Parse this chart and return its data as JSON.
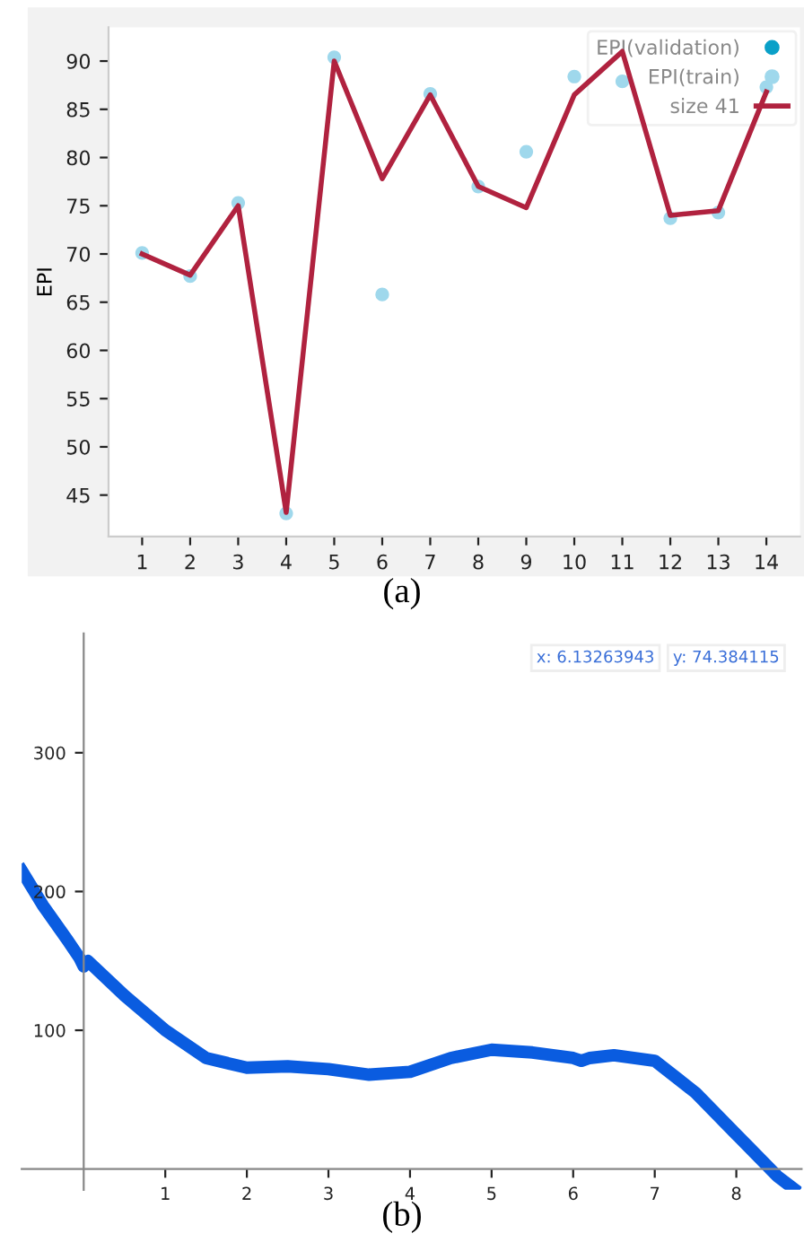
{
  "chart_data": [
    {
      "type": "line",
      "ylabel": "EPI",
      "x": [
        1,
        2,
        3,
        4,
        5,
        6,
        7,
        8,
        9,
        10,
        11,
        12,
        13,
        14
      ],
      "xlim": [
        0.3,
        14.7
      ],
      "xticks": [
        1,
        2,
        3,
        4,
        5,
        6,
        7,
        8,
        9,
        10,
        11,
        12,
        13,
        14
      ],
      "ylim": [
        40.7,
        93.5
      ],
      "yticks": [
        45,
        50,
        55,
        60,
        65,
        70,
        75,
        80,
        85,
        90
      ],
      "grid": false,
      "legend": "top right",
      "series": [
        {
          "name": "EPI(validation)",
          "type": "scatter",
          "color": "#0aa0c8",
          "values": [
            null,
            null,
            null,
            null,
            null,
            null,
            null,
            null,
            null,
            null,
            null,
            null,
            null,
            null
          ]
        },
        {
          "name": "EPI(train)",
          "type": "scatter",
          "color": "#9fd8ec",
          "values": [
            70.1,
            67.7,
            75.3,
            43.1,
            90.4,
            65.8,
            86.6,
            77,
            80.6,
            88.4,
            87.9,
            73.7,
            74.3,
            87.3
          ]
        },
        {
          "name": "size 41",
          "type": "line",
          "color": "#b0223f",
          "values": [
            70,
            67.8,
            75,
            43.2,
            90,
            77.8,
            86.5,
            77,
            74.8,
            86.5,
            91,
            74,
            74.5,
            86.8
          ]
        }
      ],
      "annotations": [
        "(a)"
      ]
    },
    {
      "type": "line",
      "xlim": [
        -0.76,
        8.8
      ],
      "xticks": [
        1,
        2,
        3,
        4,
        5,
        6,
        7,
        8
      ],
      "ylim": [
        -15,
        386
      ],
      "yticks": [
        100,
        200,
        300
      ],
      "grid": false,
      "series": [
        {
          "type": "line",
          "color": "#0a5ce0",
          "x": [
            -0.76,
            -0.5,
            -0.2,
            -0.05,
            0,
            0.05,
            0.5,
            1,
            1.5,
            2,
            2.5,
            3,
            3.5,
            4,
            4.5,
            5,
            5.5,
            6,
            6.1,
            6.2,
            6.5,
            7,
            7.5,
            8,
            8.5,
            8.7
          ],
          "values": [
            215,
            190,
            165,
            152,
            146,
            150,
            125,
            100,
            80,
            73,
            74,
            72,
            68,
            70,
            80,
            86,
            84,
            80,
            78,
            80,
            82,
            78,
            55,
            25,
            -5,
            -14
          ]
        }
      ],
      "annotations": [
        "x: 6.13263943",
        "y: 74.384115",
        "(b)"
      ]
    }
  ]
}
